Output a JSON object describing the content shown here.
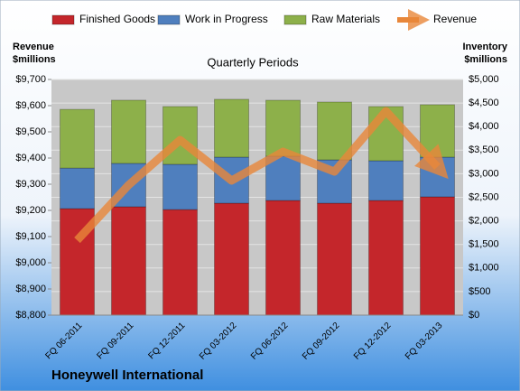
{
  "chart_data": {
    "type": "bar",
    "stacked": true,
    "title": "Quarterly Periods",
    "footer": "Honeywell International",
    "ylabel": [
      "Revenue",
      "$millions"
    ],
    "y2label": [
      "Inventory",
      "$millions"
    ],
    "categories": [
      "FQ 06-2011",
      "FQ 09-2011",
      "FQ 12-2011",
      "FQ 03-2012",
      "FQ 06-2012",
      "FQ 09-2012",
      "FQ 12-2012",
      "FQ 03-2013"
    ],
    "series": [
      {
        "name": "Finished Goods",
        "color": "#c4262b",
        "axis": "y2",
        "values": [
          2260,
          2300,
          2240,
          2375,
          2433,
          2375,
          2433,
          2510
        ]
      },
      {
        "name": "Work in Progress",
        "color": "#4f7fbe",
        "axis": "y2",
        "values": [
          860,
          920,
          960,
          977,
          939,
          920,
          843,
          842
        ]
      },
      {
        "name": "Raw Materials",
        "color": "#8db04a",
        "axis": "y2",
        "values": [
          1245,
          1340,
          1225,
          1227,
          1187,
          1226,
          1149,
          1112
        ]
      },
      {
        "name": "Revenue",
        "type": "line",
        "color": "#e8873a",
        "axis": "y",
        "values": [
          9086,
          9297,
          9469,
          9314,
          9424,
          9348,
          9579,
          9366
        ]
      }
    ],
    "ylim": [
      8800,
      9700
    ],
    "yticks": [
      {
        "value": 8800,
        "label": "$8,800"
      },
      {
        "value": 8900,
        "label": "$8,900"
      },
      {
        "value": 9000,
        "label": "$9,000"
      },
      {
        "value": 9100,
        "label": "$9,100"
      },
      {
        "value": 9200,
        "label": "$9,200"
      },
      {
        "value": 9300,
        "label": "$9,300"
      },
      {
        "value": 9400,
        "label": "$9,400"
      },
      {
        "value": 9500,
        "label": "$9,500"
      },
      {
        "value": 9600,
        "label": "$9,600"
      },
      {
        "value": 9700,
        "label": "$9,700"
      }
    ],
    "y2lim": [
      0,
      5000
    ],
    "y2ticks": [
      {
        "value": 0,
        "label": "$0"
      },
      {
        "value": 500,
        "label": "$500"
      },
      {
        "value": 1000,
        "label": "$1,000"
      },
      {
        "value": 1500,
        "label": "$1,500"
      },
      {
        "value": 2000,
        "label": "$2,000"
      },
      {
        "value": 2500,
        "label": "$2,500"
      },
      {
        "value": 3000,
        "label": "$3,000"
      },
      {
        "value": 3500,
        "label": "$3,500"
      },
      {
        "value": 4000,
        "label": "$4,000"
      },
      {
        "value": 4500,
        "label": "$4,500"
      },
      {
        "value": 5000,
        "label": "$5,000"
      }
    ],
    "grid": true
  }
}
